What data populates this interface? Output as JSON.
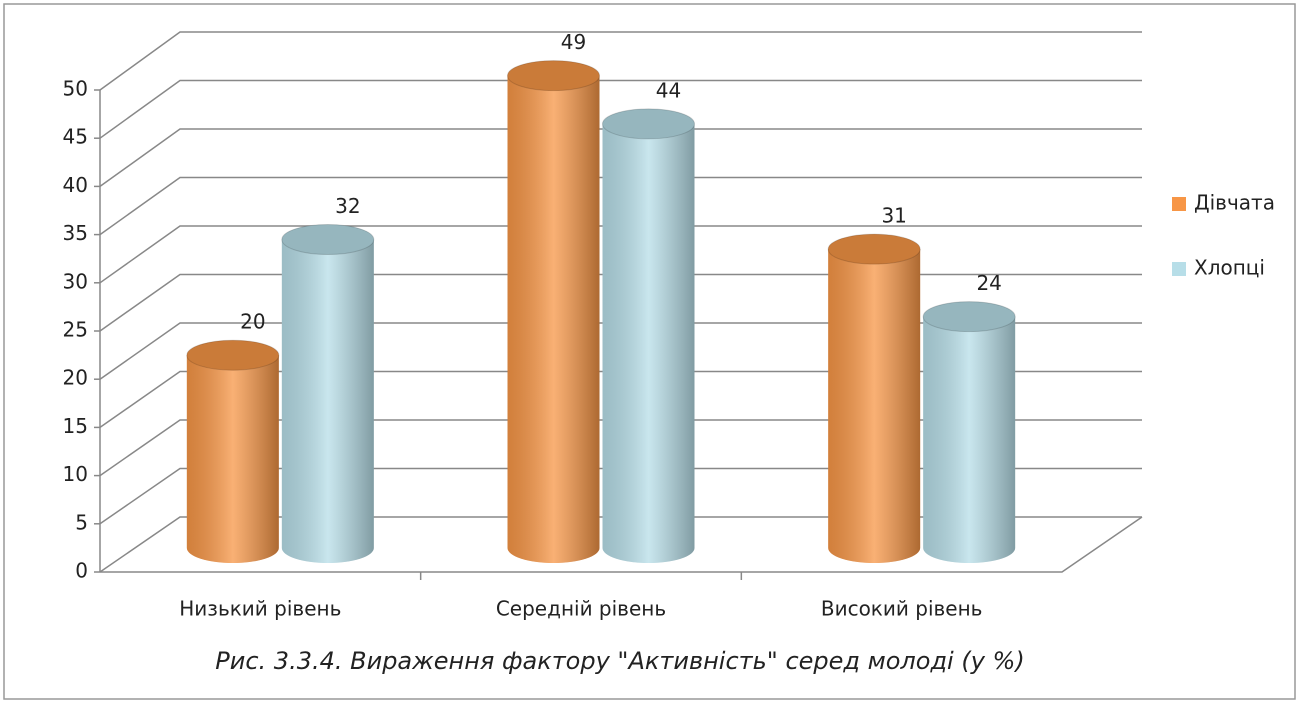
{
  "chart_data": {
    "type": "bar3d",
    "caption": "Рис. 3.3.4. Вираження фактору \"Активність\" серед молоді (у %)",
    "categories": [
      "Низький рівень",
      "Середній рівень",
      "Високий рівень"
    ],
    "series": [
      {
        "name": "Дівчата",
        "color": "#f79646",
        "values": [
          20,
          49,
          31
        ]
      },
      {
        "name": "Хлопці",
        "color": "#b7dee8",
        "values": [
          32,
          44,
          24
        ]
      }
    ],
    "ylim": [
      0,
      50
    ],
    "yticks": [
      0,
      5,
      10,
      15,
      20,
      25,
      30,
      35,
      40,
      45,
      50
    ],
    "grid": true,
    "legend": "right"
  }
}
